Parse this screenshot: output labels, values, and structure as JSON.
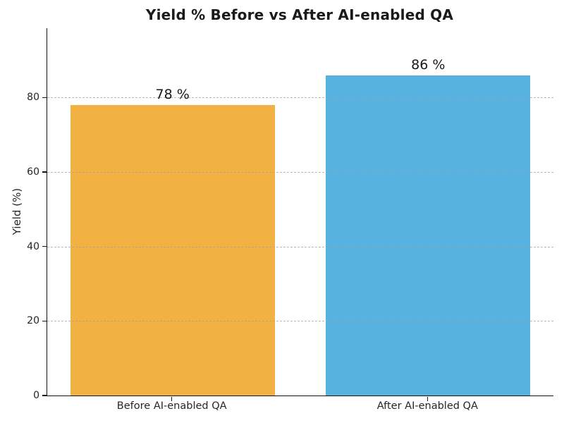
{
  "chart_data": {
    "type": "bar",
    "title": "Yield % Before vs After AI-enabled QA",
    "xlabel": "",
    "ylabel": "Yield (%)",
    "categories": [
      "Before AI-enabled QA",
      "After AI-enabled QA"
    ],
    "values": [
      78,
      86
    ],
    "bar_value_labels": [
      "78 %",
      "86 %"
    ],
    "bar_colors": [
      "#F1B143",
      "#57B2E0"
    ],
    "yticks": [
      0,
      20,
      40,
      60,
      80
    ],
    "ytick_labels": [
      "0",
      "20",
      "40",
      "60",
      "80"
    ],
    "ylim": [
      0,
      98.6
    ],
    "xlim": [
      -0.49,
      1.49
    ],
    "bar_width_data_units": 0.8,
    "grid": "horizontal-dashed",
    "grid_color": "#a0a0a0",
    "background_color": "#ffffff",
    "legend": "none"
  }
}
